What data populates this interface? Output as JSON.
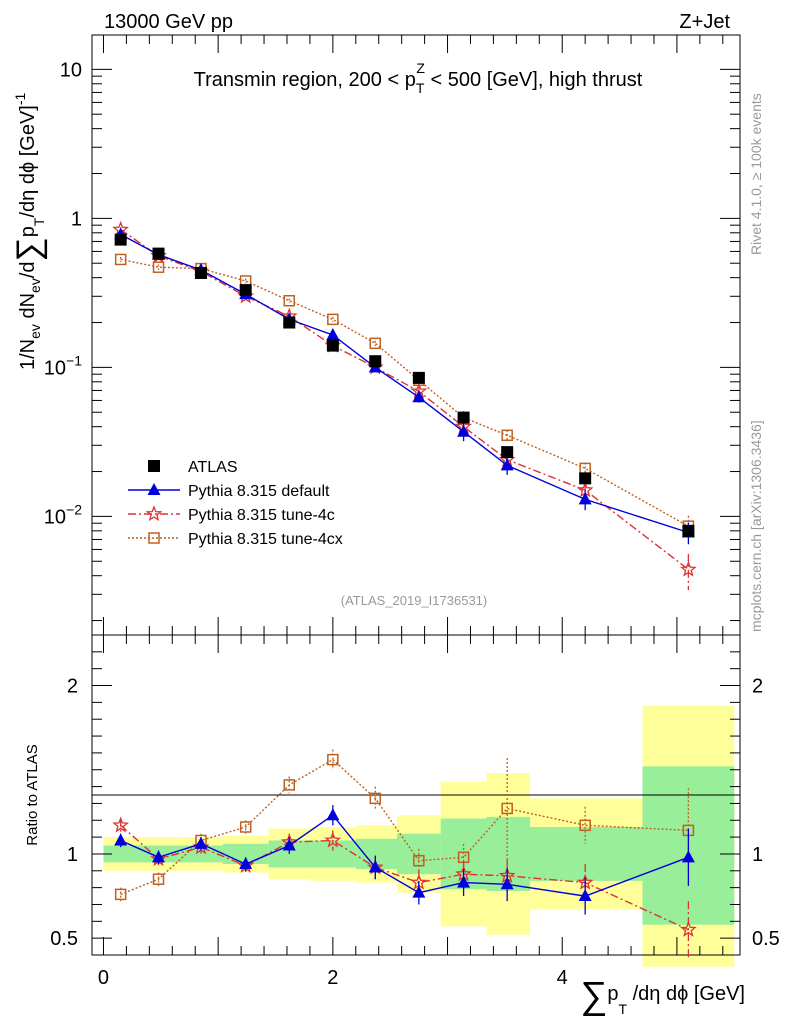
{
  "header": {
    "left": "13000 GeV pp",
    "right": "Z+Jet"
  },
  "chart_data": [
    {
      "panel": "main",
      "type": "scatter",
      "title": "Transmin region, 200 < p_T^Z < 500 [GeV], high thrust",
      "title_parts": {
        "pre": "Transmin region, 200 < p",
        "sub": "T",
        "sup": "Z",
        "post": " < 500 [GeV], high thrust"
      },
      "ylabel": "1/N_ev dN_ev/d Σ p_T /dη dϕ [GeV]^-1",
      "ylabel_parts": {
        "a": "1/N",
        "a_sub": "ev",
        "b": " dN",
        "b_sub": "ev",
        "c": "/d",
        "sum": "∑",
        "d": "p",
        "d_sub": "T",
        "e": "/dη dϕ  [GeV]",
        "e_sup": "-1"
      },
      "yscale": "log",
      "ylim": [
        0.0016,
        17
      ],
      "xlim": [
        -0.1,
        5.55
      ],
      "y_ticks": [
        {
          "value": 10,
          "label": "10",
          "exp": ""
        },
        {
          "value": 1,
          "label": "1",
          "exp": ""
        },
        {
          "value": 0.1,
          "label": "10",
          "exp": "−1"
        },
        {
          "value": 0.01,
          "label": "10",
          "exp": "−2"
        }
      ],
      "x": [
        0.15,
        0.48,
        0.85,
        1.24,
        1.62,
        2.0,
        2.37,
        2.75,
        3.14,
        3.52,
        4.2,
        5.1
      ],
      "series": [
        {
          "name": "ATLAS",
          "marker": "square-filled",
          "color": "#000000",
          "line": "none",
          "values": [
            0.72,
            0.58,
            0.43,
            0.33,
            0.2,
            0.14,
            0.11,
            0.085,
            0.046,
            0.027,
            0.018,
            0.008
          ]
        },
        {
          "name": "Pythia 8.315 default",
          "marker": "triangle-filled",
          "color": "#0000dd",
          "line": "solid",
          "values": [
            0.78,
            0.57,
            0.45,
            0.31,
            0.21,
            0.165,
            0.1,
            0.063,
            0.037,
            0.022,
            0.013,
            0.0078
          ],
          "errors": [
            0.03,
            0.02,
            0.02,
            0.015,
            0.01,
            0.008,
            0.006,
            0.005,
            0.005,
            0.003,
            0.002,
            0.0013
          ]
        },
        {
          "name": "Pythia 8.315 tune-4c",
          "marker": "star-open",
          "color": "#dd3333",
          "line": "dashdot",
          "values": [
            0.84,
            0.56,
            0.44,
            0.3,
            0.22,
            0.14,
            0.1,
            0.069,
            0.04,
            0.024,
            0.015,
            0.0044
          ],
          "errors": [
            0.03,
            0.02,
            0.02,
            0.015,
            0.01,
            0.008,
            0.006,
            0.005,
            0.005,
            0.003,
            0.002,
            0.0012
          ]
        },
        {
          "name": "Pythia 8.315 tune-4cx",
          "marker": "square-open",
          "color": "#c06020",
          "line": "dotted",
          "values": [
            0.53,
            0.47,
            0.46,
            0.38,
            0.28,
            0.21,
            0.145,
            0.082,
            0.046,
            0.035,
            0.021,
            0.0086
          ],
          "errors": [
            0.02,
            0.02,
            0.02,
            0.015,
            0.01,
            0.008,
            0.006,
            0.005,
            0.005,
            0.003,
            0.002,
            0.0015
          ]
        }
      ],
      "watermark": "(ATLAS_2019_I1736531)",
      "side_texts": [
        "Rivet 4.1.0, ≥ 100k events",
        "mcplots.cern.ch [arXiv:1306.3436]"
      ]
    },
    {
      "panel": "ratio",
      "type": "scatter",
      "ylabel": "Ratio to ATLAS",
      "xlabel_parts": {
        "sum": "∑",
        "a": "p",
        "a_sub": "T",
        "b": " /dη dϕ [GeV]"
      },
      "ylim": [
        0.4,
        2.3
      ],
      "xlim": [
        -0.1,
        5.55
      ],
      "x_ticks": [
        0,
        2,
        4
      ],
      "y_ticks": [
        0.5,
        1,
        2
      ],
      "bins": [
        {
          "lo": 0.0,
          "hi": 0.3,
          "yellow": [
            0.9,
            1.1
          ],
          "green": [
            0.95,
            1.05
          ]
        },
        {
          "lo": 0.3,
          "hi": 0.66,
          "yellow": [
            0.9,
            1.1
          ],
          "green": [
            0.95,
            1.05
          ]
        },
        {
          "lo": 0.66,
          "hi": 1.04,
          "yellow": [
            0.9,
            1.1
          ],
          "green": [
            0.95,
            1.05
          ]
        },
        {
          "lo": 1.04,
          "hi": 1.44,
          "yellow": [
            0.89,
            1.11
          ],
          "green": [
            0.94,
            1.06
          ]
        },
        {
          "lo": 1.44,
          "hi": 1.8,
          "yellow": [
            0.85,
            1.15
          ],
          "green": [
            0.92,
            1.08
          ]
        },
        {
          "lo": 1.8,
          "hi": 2.2,
          "yellow": [
            0.84,
            1.16
          ],
          "green": [
            0.92,
            1.08
          ]
        },
        {
          "lo": 2.2,
          "hi": 2.56,
          "yellow": [
            0.83,
            1.17
          ],
          "green": [
            0.91,
            1.09
          ]
        },
        {
          "lo": 2.56,
          "hi": 2.94,
          "yellow": [
            0.77,
            1.23
          ],
          "green": [
            0.88,
            1.12
          ]
        },
        {
          "lo": 2.94,
          "hi": 3.34,
          "yellow": [
            0.57,
            1.43
          ],
          "green": [
            0.79,
            1.21
          ]
        },
        {
          "lo": 3.34,
          "hi": 3.72,
          "yellow": [
            0.52,
            1.48
          ],
          "green": [
            0.78,
            1.22
          ]
        },
        {
          "lo": 3.72,
          "hi": 4.7,
          "yellow": [
            0.67,
            1.33
          ],
          "green": [
            0.84,
            1.16
          ]
        },
        {
          "lo": 4.7,
          "hi": 5.5,
          "yellow": [
            0.33,
            1.88
          ],
          "green": [
            0.58,
            1.52
          ]
        }
      ],
      "x": [
        0.15,
        0.48,
        0.85,
        1.24,
        1.62,
        2.0,
        2.37,
        2.75,
        3.14,
        3.52,
        4.2,
        5.1
      ],
      "series": [
        {
          "name": "Pythia 8.315 default",
          "marker": "triangle-filled",
          "color": "#0000dd",
          "line": "solid",
          "values": [
            1.08,
            0.98,
            1.06,
            0.94,
            1.05,
            1.23,
            0.92,
            0.77,
            0.83,
            0.82,
            0.75,
            0.98
          ],
          "errors": [
            0.04,
            0.04,
            0.04,
            0.04,
            0.05,
            0.06,
            0.07,
            0.07,
            0.08,
            0.1,
            0.11,
            0.17
          ]
        },
        {
          "name": "Pythia 8.315 tune-4c",
          "marker": "star-open",
          "color": "#dd3333",
          "line": "dashdot",
          "values": [
            1.17,
            0.97,
            1.04,
            0.93,
            1.07,
            1.08,
            0.92,
            0.83,
            0.88,
            0.87,
            0.83,
            0.55
          ],
          "errors": [
            0.04,
            0.04,
            0.04,
            0.04,
            0.05,
            0.06,
            0.07,
            0.07,
            0.08,
            0.1,
            0.11,
            0.17
          ]
        },
        {
          "name": "Pythia 8.315 tune-4cx",
          "marker": "square-open",
          "color": "#c06020",
          "line": "dotted",
          "values": [
            0.76,
            0.85,
            1.08,
            1.16,
            1.41,
            1.56,
            1.33,
            0.96,
            0.98,
            1.27,
            1.17,
            1.14
          ],
          "errors": [
            0.04,
            0.04,
            0.04,
            0.04,
            0.05,
            0.06,
            0.07,
            0.07,
            0.08,
            0.3,
            0.11,
            0.25
          ]
        }
      ]
    }
  ]
}
